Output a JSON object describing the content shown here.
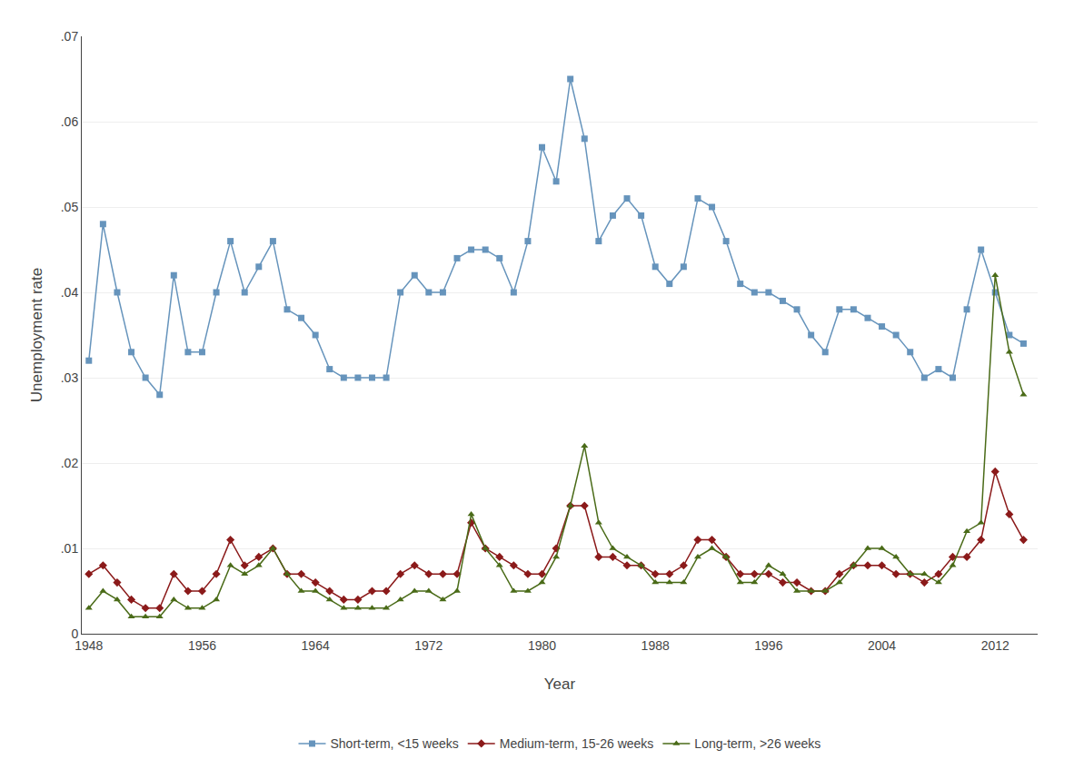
{
  "chart_data": {
    "type": "line",
    "xlabel": "Year",
    "ylabel": "Unemployment rate",
    "x": [
      1948,
      1949,
      1950,
      1951,
      1952,
      1953,
      1954,
      1955,
      1956,
      1957,
      1958,
      1959,
      1960,
      1961,
      1962,
      1963,
      1964,
      1965,
      1966,
      1967,
      1968,
      1969,
      1970,
      1971,
      1972,
      1973,
      1974,
      1975,
      1976,
      1977,
      1978,
      1979,
      1980,
      1981,
      1982,
      1983,
      1984,
      1985,
      1986,
      1987,
      1988,
      1989,
      1990,
      1991,
      1992,
      1993,
      1994,
      1995,
      1996,
      1997,
      1998,
      1999,
      2000,
      2001,
      2002,
      2003,
      2004,
      2005,
      2006,
      2007,
      2008,
      2009,
      2010,
      2011,
      2012,
      2013,
      2014
    ],
    "series": [
      {
        "name": "Short-term, <15 weeks",
        "color": "#6694bc",
        "marker": "square",
        "line_style": "solid",
        "values": [
          0.032,
          0.048,
          0.04,
          0.033,
          0.03,
          0.028,
          0.042,
          0.033,
          0.033,
          0.04,
          0.046,
          0.04,
          0.043,
          0.046,
          0.038,
          0.037,
          0.035,
          0.031,
          0.03,
          0.03,
          0.03,
          0.03,
          0.04,
          0.042,
          0.04,
          0.04,
          0.044,
          0.045,
          0.045,
          0.044,
          0.04,
          0.046,
          0.057,
          0.053,
          0.065,
          0.058,
          0.046,
          0.049,
          0.051,
          0.049,
          0.043,
          0.041,
          0.043,
          0.051,
          0.05,
          0.046,
          0.041,
          0.04,
          0.04,
          0.039,
          0.038,
          0.035,
          0.033,
          0.038,
          0.038,
          0.037,
          0.036,
          0.035,
          0.033,
          0.03,
          0.031,
          0.03,
          0.038,
          0.045,
          0.04,
          0.035,
          0.034
        ]
      },
      {
        "name": "Medium-term, 15-26 weeks",
        "color": "#8b1a1a",
        "marker": "diamond",
        "line_style": "solid",
        "values": [
          0.007,
          0.008,
          0.006,
          0.004,
          0.003,
          0.003,
          0.007,
          0.005,
          0.005,
          0.007,
          0.011,
          0.008,
          0.009,
          0.01,
          0.007,
          0.007,
          0.006,
          0.005,
          0.004,
          0.004,
          0.005,
          0.005,
          0.007,
          0.008,
          0.007,
          0.007,
          0.007,
          0.013,
          0.01,
          0.009,
          0.008,
          0.007,
          0.007,
          0.01,
          0.015,
          0.015,
          0.009,
          0.009,
          0.008,
          0.008,
          0.007,
          0.007,
          0.008,
          0.011,
          0.011,
          0.009,
          0.007,
          0.007,
          0.007,
          0.006,
          0.006,
          0.005,
          0.005,
          0.007,
          0.008,
          0.008,
          0.008,
          0.007,
          0.007,
          0.006,
          0.007,
          0.009,
          0.009,
          0.011,
          0.019,
          0.014,
          0.011
        ]
      },
      {
        "name": "Long-term, >26 weeks",
        "color": "#4a6b18",
        "marker": "triangle-up",
        "line_style": "solid",
        "values": [
          0.003,
          0.005,
          0.004,
          0.002,
          0.002,
          0.002,
          0.004,
          0.003,
          0.003,
          0.004,
          0.008,
          0.007,
          0.008,
          0.01,
          0.007,
          0.005,
          0.005,
          0.004,
          0.003,
          0.003,
          0.003,
          0.003,
          0.004,
          0.005,
          0.005,
          0.004,
          0.005,
          0.014,
          0.01,
          0.008,
          0.005,
          0.005,
          0.006,
          0.009,
          0.015,
          0.022,
          0.013,
          0.01,
          0.009,
          0.008,
          0.006,
          0.006,
          0.006,
          0.009,
          0.01,
          0.009,
          0.006,
          0.006,
          0.008,
          0.007,
          0.005,
          0.005,
          0.005,
          0.006,
          0.008,
          0.01,
          0.01,
          0.009,
          0.007,
          0.007,
          0.006,
          0.008,
          0.012,
          0.013,
          0.042,
          0.033,
          0.028
        ]
      }
    ],
    "xlim": [
      1947.5,
      2015
    ],
    "xticks": [
      1948,
      1956,
      1964,
      1972,
      1980,
      1988,
      1996,
      2004,
      2012
    ],
    "ylim": [
      0,
      0.07
    ],
    "yticks": [
      0,
      {
        "value": 0.01,
        "label": ".01"
      },
      {
        "value": 0.02,
        "label": ".02"
      },
      {
        "value": 0.03,
        "label": ".03"
      },
      {
        "value": 0.04,
        "label": ".04"
      },
      {
        "value": 0.05,
        "label": ".05"
      },
      {
        "value": 0.06,
        "label": ".06"
      },
      {
        "value": 0.07,
        "label": ".07"
      }
    ],
    "grid": "y",
    "legend": "bottom"
  }
}
